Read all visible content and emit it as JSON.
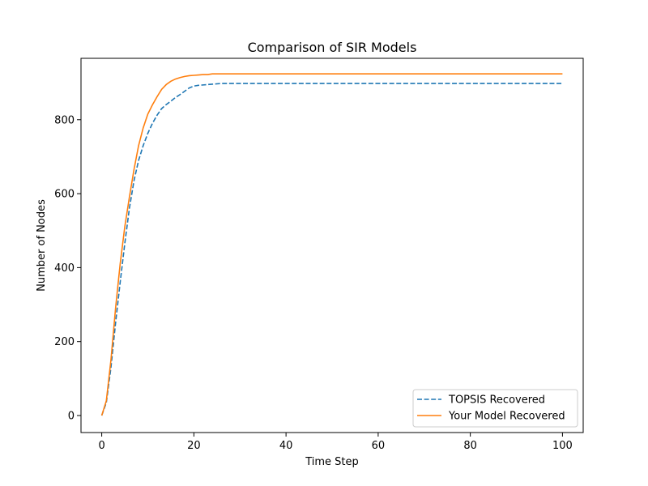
{
  "chart_data": {
    "type": "line",
    "title": "Comparison of SIR Models",
    "xlabel": "Time Step",
    "ylabel": "Number of Nodes",
    "xlim": [
      -4.5,
      104.5
    ],
    "ylim": [
      -46,
      966
    ],
    "xticks": [
      0,
      20,
      40,
      60,
      80,
      100
    ],
    "yticks": [
      0,
      200,
      400,
      600,
      800
    ],
    "grid": false,
    "legend_position": "lower-right",
    "series": [
      {
        "name": "TOPSIS Recovered",
        "color": "#1f77b4",
        "style": "dashed",
        "x": [
          0,
          1,
          2,
          3,
          4,
          5,
          6,
          7,
          8,
          9,
          10,
          11,
          12,
          13,
          14,
          15,
          16,
          17,
          18,
          19,
          20,
          21,
          22,
          23,
          24,
          25,
          26,
          27,
          30,
          40,
          50,
          60,
          70,
          80,
          90,
          100
        ],
        "y": [
          0,
          35,
          130,
          250,
          360,
          465,
          560,
          635,
          690,
          730,
          763,
          790,
          812,
          830,
          841,
          850,
          860,
          868,
          877,
          886,
          891,
          893,
          894,
          895,
          896,
          897,
          898,
          898,
          898,
          898,
          898,
          898,
          898,
          898,
          898,
          898
        ]
      },
      {
        "name": "Your Model Recovered",
        "color": "#ff7f0e",
        "style": "solid",
        "x": [
          0,
          1,
          2,
          3,
          4,
          5,
          6,
          7,
          8,
          9,
          10,
          11,
          12,
          13,
          14,
          15,
          16,
          17,
          18,
          19,
          20,
          21,
          22,
          23,
          24,
          25,
          30,
          40,
          50,
          60,
          70,
          80,
          90,
          100
        ],
        "y": [
          0,
          40,
          150,
          290,
          410,
          510,
          590,
          665,
          730,
          778,
          815,
          840,
          862,
          882,
          895,
          904,
          910,
          914,
          917,
          919,
          920,
          921,
          922,
          922,
          924,
          924,
          924,
          924,
          924,
          924,
          924,
          924,
          924,
          924
        ]
      }
    ]
  }
}
